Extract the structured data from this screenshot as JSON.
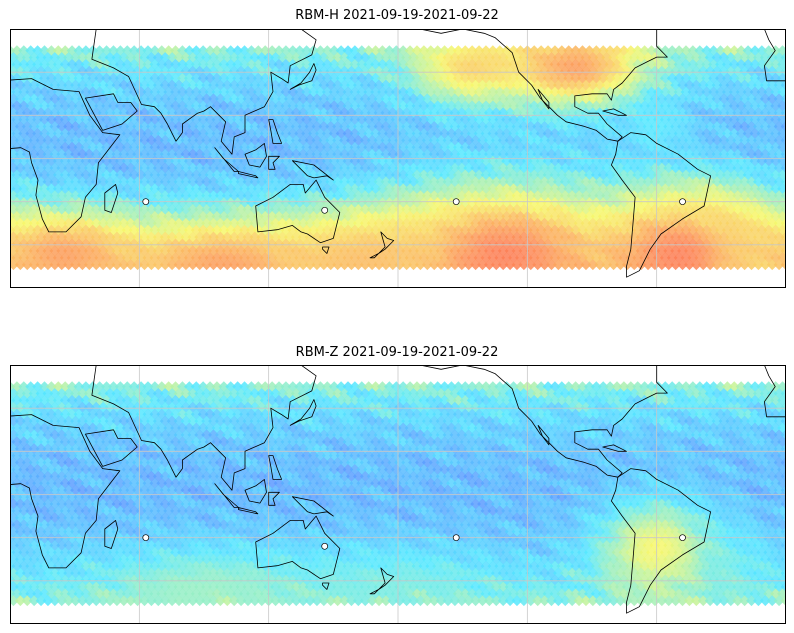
{
  "figure": {
    "panels": [
      {
        "title": "RBM-H 2021-09-19-2021-09-22",
        "hotspots": [
          {
            "lon": 230,
            "lat": -45,
            "level": 0.95,
            "r": 85,
            "rx": 1.6
          },
          {
            "lon": 310,
            "lat": -45,
            "level": 0.95,
            "r": 70,
            "rx": 1.3
          },
          {
            "lon": 325,
            "lat": -35,
            "level": 0.8,
            "r": 55,
            "rx": 1.4
          },
          {
            "lon": 25,
            "lat": -45,
            "level": 0.9,
            "r": 55,
            "rx": 1.8
          },
          {
            "lon": 100,
            "lat": -50,
            "level": 0.9,
            "r": 60,
            "rx": 2.2
          },
          {
            "lon": 165,
            "lat": -48,
            "level": 0.85,
            "r": 55,
            "rx": 2.0
          },
          {
            "lon": 200,
            "lat": -48,
            "level": 0.8,
            "r": 50,
            "rx": 2.0
          },
          {
            "lon": 213,
            "lat": 42,
            "level": 0.8,
            "r": 40,
            "rx": 1.6
          },
          {
            "lon": 262,
            "lat": 42,
            "level": 0.9,
            "r": 45,
            "rx": 1.8
          },
          {
            "lon": 300,
            "lat": 15,
            "level": 0.5,
            "r": 30,
            "rx": 1.2
          }
        ]
      },
      {
        "title": "RBM-Z 2021-09-19-2021-09-22",
        "hotspots": [
          {
            "lon": 300,
            "lat": -25,
            "level": 0.75,
            "r": 55,
            "rx": 1.2
          },
          {
            "lon": 320,
            "lat": -35,
            "level": 0.55,
            "r": 50,
            "rx": 1.6
          },
          {
            "lon": 90,
            "lat": -45,
            "level": 0.6,
            "r": 50,
            "rx": 2.5
          },
          {
            "lon": 180,
            "lat": -45,
            "level": 0.55,
            "r": 50,
            "rx": 2.5
          },
          {
            "lon": 30,
            "lat": -42,
            "level": 0.45,
            "r": 40,
            "rx": 1.5
          },
          {
            "lon": 255,
            "lat": 40,
            "level": 0.4,
            "r": 35,
            "rx": 1.6
          },
          {
            "lon": 220,
            "lat": 40,
            "level": 0.35,
            "r": 35,
            "rx": 1.6
          }
        ]
      }
    ],
    "projection": {
      "lon_range": [
        0,
        360
      ],
      "lat_range": [
        -60,
        60
      ],
      "data_lat_range": [
        -50,
        50
      ]
    },
    "colormap": [
      "#6a6aff",
      "#5aa0ff",
      "#55e8ff",
      "#f7f76a",
      "#ff6050"
    ],
    "gridlines": {
      "lon_step": 60,
      "lat_step": 20,
      "color": "#c8c8c8"
    }
  }
}
